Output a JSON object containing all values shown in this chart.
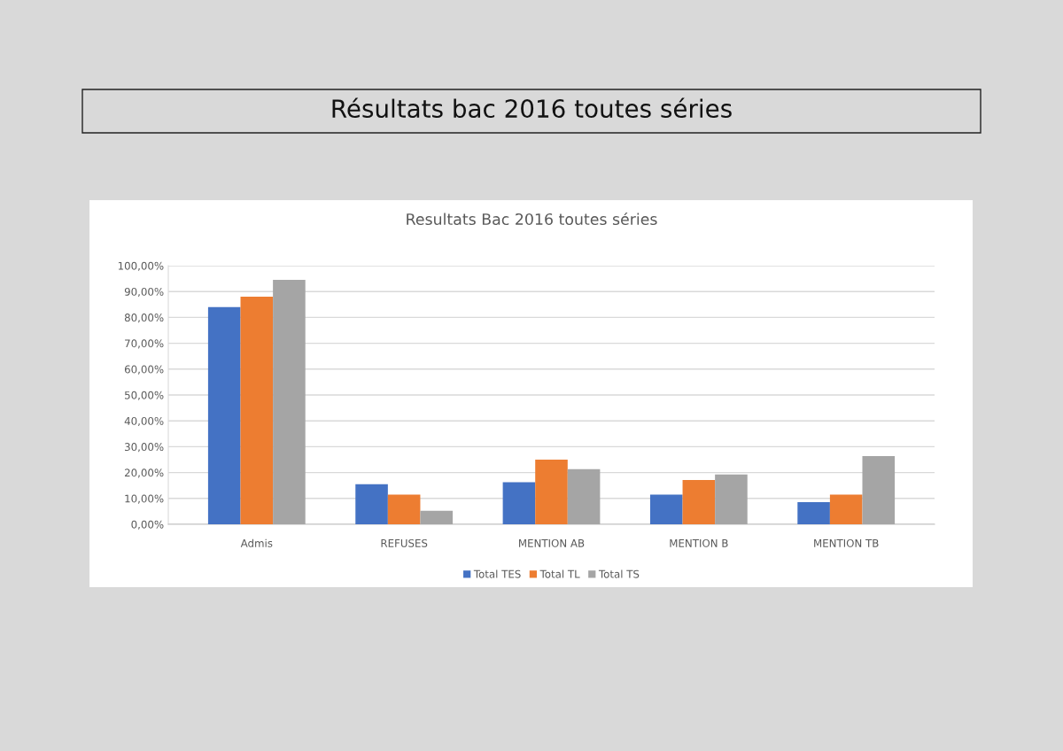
{
  "chart_data": {
    "type": "bar",
    "title": "Résultats bac 2016 toutes séries",
    "subtitle": "Resultats Bac 2016 toutes séries",
    "categories": [
      "Admis",
      "REFUSES",
      "MENTION AB",
      "MENTION B",
      "MENTION TB"
    ],
    "series": [
      {
        "name": "Total TES",
        "color": "#4472c4",
        "values": [
          84.0,
          15.5,
          16.3,
          11.5,
          8.6
        ]
      },
      {
        "name": "Total TL",
        "color": "#ed7d31",
        "values": [
          88.0,
          11.5,
          25.0,
          17.1,
          11.5
        ]
      },
      {
        "name": "Total TS",
        "color": "#a5a5a5",
        "values": [
          94.5,
          5.2,
          21.3,
          19.3,
          26.4
        ]
      }
    ],
    "ylim": [
      0,
      100
    ],
    "yticks": [
      {
        "value": 0,
        "label": "0,00%"
      },
      {
        "value": 10,
        "label": "10,00%"
      },
      {
        "value": 20,
        "label": "20,00%"
      },
      {
        "value": 30,
        "label": "30,00%"
      },
      {
        "value": 40,
        "label": "40,00%"
      },
      {
        "value": 50,
        "label": "50,00%"
      },
      {
        "value": 60,
        "label": "60,00%"
      },
      {
        "value": 70,
        "label": "70,00%"
      },
      {
        "value": 80,
        "label": "80,00%"
      },
      {
        "value": 90,
        "label": "90,00%"
      },
      {
        "value": 100,
        "label": "100,00%"
      }
    ],
    "grid": "y",
    "legend": "bottom"
  }
}
